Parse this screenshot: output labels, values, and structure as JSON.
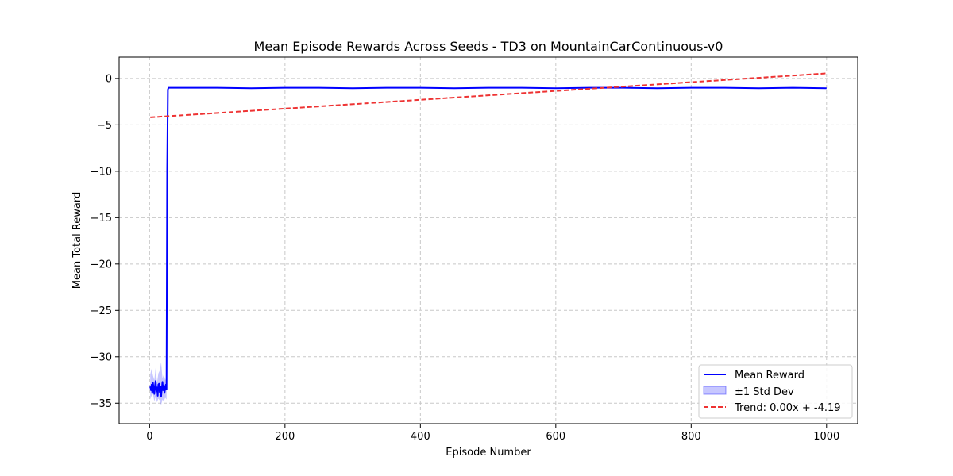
{
  "chart_data": {
    "type": "line",
    "title": "Mean Episode Rewards Across Seeds - TD3 on MountainCarContinuous-v0",
    "xlabel": "Episode Number",
    "ylabel": "Mean Total Reward",
    "xlim": [
      -45,
      1046
    ],
    "ylim": [
      -37.2,
      2.3
    ],
    "x_ticks": [
      0,
      200,
      400,
      600,
      800,
      1000
    ],
    "y_ticks": [
      0,
      -5,
      -10,
      -15,
      -20,
      -25,
      -30,
      -35
    ],
    "x_tick_labels": [
      "0",
      "200",
      "400",
      "600",
      "800",
      "1000"
    ],
    "y_tick_labels": [
      "0",
      "−5",
      "−10",
      "−15",
      "−20",
      "−25",
      "−30",
      "−35"
    ],
    "grid": true,
    "grid_style": "dashed",
    "legend_position": "lower-right",
    "series": [
      {
        "name": "Mean Reward",
        "kind": "line",
        "color": "#0000ff",
        "points": [
          [
            1,
            -33.2
          ],
          [
            2,
            -33.6
          ],
          [
            3,
            -33.0
          ],
          [
            4,
            -33.9
          ],
          [
            5,
            -32.8
          ],
          [
            6,
            -33.4
          ],
          [
            7,
            -34.0
          ],
          [
            8,
            -33.1
          ],
          [
            9,
            -32.6
          ],
          [
            10,
            -33.7
          ],
          [
            11,
            -33.3
          ],
          [
            12,
            -34.2
          ],
          [
            13,
            -33.0
          ],
          [
            14,
            -32.9
          ],
          [
            15,
            -33.8
          ],
          [
            16,
            -33.2
          ],
          [
            17,
            -34.3
          ],
          [
            18,
            -33.5
          ],
          [
            19,
            -32.7
          ],
          [
            20,
            -33.6
          ],
          [
            21,
            -33.1
          ],
          [
            22,
            -33.9
          ],
          [
            23,
            -33.4
          ],
          [
            24,
            -33.0
          ],
          [
            25,
            -33.5
          ],
          [
            26,
            -10.0
          ],
          [
            27,
            -1.2
          ],
          [
            28,
            -1.0
          ],
          [
            50,
            -1.0
          ],
          [
            100,
            -1.0
          ],
          [
            150,
            -1.05
          ],
          [
            200,
            -1.0
          ],
          [
            250,
            -1.0
          ],
          [
            300,
            -1.05
          ],
          [
            350,
            -1.0
          ],
          [
            400,
            -1.0
          ],
          [
            450,
            -1.05
          ],
          [
            500,
            -1.0
          ],
          [
            550,
            -1.0
          ],
          [
            600,
            -1.05
          ],
          [
            650,
            -1.0
          ],
          [
            700,
            -1.0
          ],
          [
            750,
            -1.05
          ],
          [
            800,
            -1.0
          ],
          [
            850,
            -1.0
          ],
          [
            900,
            -1.05
          ],
          [
            950,
            -1.0
          ],
          [
            1000,
            -1.05
          ]
        ]
      },
      {
        "name": "±1 Std Dev",
        "kind": "band",
        "color": "#0000ff",
        "opacity": 0.22,
        "x": [
          1,
          3,
          5,
          7,
          9,
          11,
          13,
          15,
          17,
          19,
          21,
          23,
          25,
          26,
          27
        ],
        "lower": [
          -34.6,
          -34.2,
          -34.0,
          -34.8,
          -34.3,
          -34.9,
          -34.5,
          -34.7,
          -35.2,
          -34.6,
          -34.8,
          -34.4,
          -34.6,
          -11.0,
          -1.3
        ],
        "upper": [
          -31.9,
          -31.3,
          -32.0,
          -32.5,
          -31.2,
          -32.8,
          -31.8,
          -31.5,
          -30.6,
          -32.3,
          -31.9,
          -32.5,
          -32.2,
          -9.0,
          -1.0
        ]
      },
      {
        "name": "Trend: 0.00x + -4.19",
        "kind": "trend",
        "color": "#ee3333",
        "x": [
          1,
          1000
        ],
        "y": [
          -4.19,
          0.55
        ]
      }
    ]
  },
  "colors": {
    "mean_line": "#0000ff",
    "band_fill": "#0000ff",
    "trend_line": "#ee3333",
    "grid": "#c8c8c8"
  }
}
